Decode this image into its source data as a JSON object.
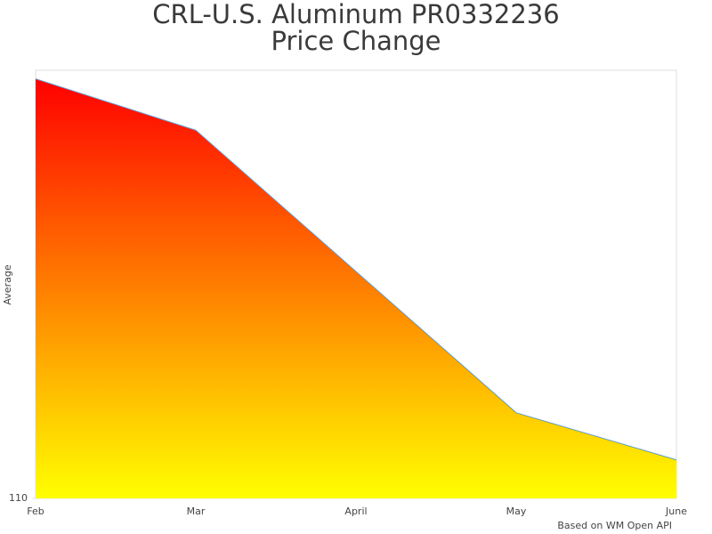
{
  "chart_data": {
    "type": "area",
    "title": "CRL-U.S. Aluminum PR0332236",
    "subtitle": "Price Change",
    "y_label": "Average",
    "footer": "Based on WM Open API",
    "categories": [
      "Feb",
      "Mar",
      "April",
      "May",
      "June"
    ],
    "series": [
      {
        "name": "Average",
        "color": "#5b9bd5",
        "values": [
          119.8,
          118.6,
          115.3,
          112.0,
          110.9
        ]
      }
    ],
    "fill_gradient": [
      "#ff0000",
      "#ffff00"
    ],
    "ylim": [
      110,
      120
    ],
    "yticks": [
      110
    ],
    "grid": false
  }
}
